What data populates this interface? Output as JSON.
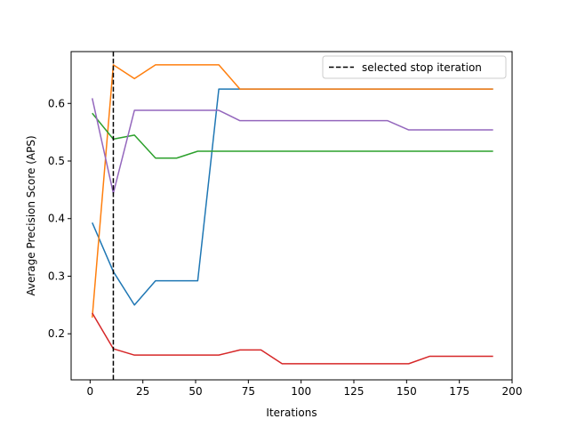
{
  "chart_data": {
    "type": "line",
    "title": "",
    "xlabel": "Iterations",
    "ylabel": "Average Precision Score (APS)",
    "xlim": [
      -9,
      200
    ],
    "ylim": [
      0.12,
      0.69
    ],
    "x_ticks": [
      0,
      25,
      50,
      75,
      100,
      125,
      150,
      175,
      200
    ],
    "y_ticks": [
      0.2,
      0.3,
      0.4,
      0.5,
      0.6
    ],
    "y_tick_labels": [
      "0.2",
      "0.3",
      "0.4",
      "0.5",
      "0.6"
    ],
    "grid": false,
    "legend": {
      "position": "top-right",
      "entries": [
        "selected stop iteration"
      ]
    },
    "vline": {
      "x": 11,
      "label": "selected stop iteration",
      "style": "dashed",
      "color": "#000000"
    },
    "series": [
      {
        "color": "#1f77b4",
        "x": [
          1,
          11,
          21,
          31,
          41,
          51,
          61,
          71,
          81,
          91,
          101,
          111,
          121,
          131,
          141,
          151,
          161,
          171,
          181,
          191
        ],
        "y": [
          0.393,
          0.308,
          0.25,
          0.292,
          0.292,
          0.292,
          0.625,
          0.625,
          0.625,
          0.625,
          0.625,
          0.625,
          0.625,
          0.625,
          0.625,
          0.625,
          0.625,
          0.625,
          0.625,
          0.625
        ]
      },
      {
        "color": "#ff7f0e",
        "x": [
          1,
          11,
          21,
          31,
          41,
          51,
          61,
          71,
          81,
          91,
          101,
          111,
          121,
          131,
          141,
          151,
          161,
          171,
          181,
          191
        ],
        "y": [
          0.228,
          0.667,
          0.643,
          0.667,
          0.667,
          0.667,
          0.667,
          0.625,
          0.625,
          0.625,
          0.625,
          0.625,
          0.625,
          0.625,
          0.625,
          0.625,
          0.625,
          0.625,
          0.625,
          0.625
        ]
      },
      {
        "color": "#2ca02c",
        "x": [
          1,
          11,
          21,
          31,
          41,
          51,
          61,
          71,
          81,
          91,
          101,
          111,
          121,
          131,
          141,
          151,
          161,
          171,
          181,
          191
        ],
        "y": [
          0.583,
          0.538,
          0.545,
          0.505,
          0.505,
          0.517,
          0.517,
          0.517,
          0.517,
          0.517,
          0.517,
          0.517,
          0.517,
          0.517,
          0.517,
          0.517,
          0.517,
          0.517,
          0.517,
          0.517
        ]
      },
      {
        "color": "#d62728",
        "x": [
          1,
          11,
          21,
          31,
          41,
          51,
          61,
          71,
          81,
          91,
          101,
          111,
          121,
          131,
          141,
          151,
          161,
          171,
          181,
          191
        ],
        "y": [
          0.236,
          0.174,
          0.163,
          0.163,
          0.163,
          0.163,
          0.163,
          0.172,
          0.172,
          0.148,
          0.148,
          0.148,
          0.148,
          0.148,
          0.148,
          0.148,
          0.161,
          0.161,
          0.161,
          0.161
        ]
      },
      {
        "color": "#9467bd",
        "x": [
          1,
          11,
          21,
          31,
          41,
          51,
          61,
          71,
          81,
          91,
          101,
          111,
          121,
          131,
          141,
          151,
          161,
          171,
          181,
          191
        ],
        "y": [
          0.609,
          0.444,
          0.588,
          0.588,
          0.588,
          0.588,
          0.588,
          0.57,
          0.57,
          0.57,
          0.57,
          0.57,
          0.57,
          0.57,
          0.57,
          0.554,
          0.554,
          0.554,
          0.554,
          0.554
        ]
      }
    ]
  }
}
